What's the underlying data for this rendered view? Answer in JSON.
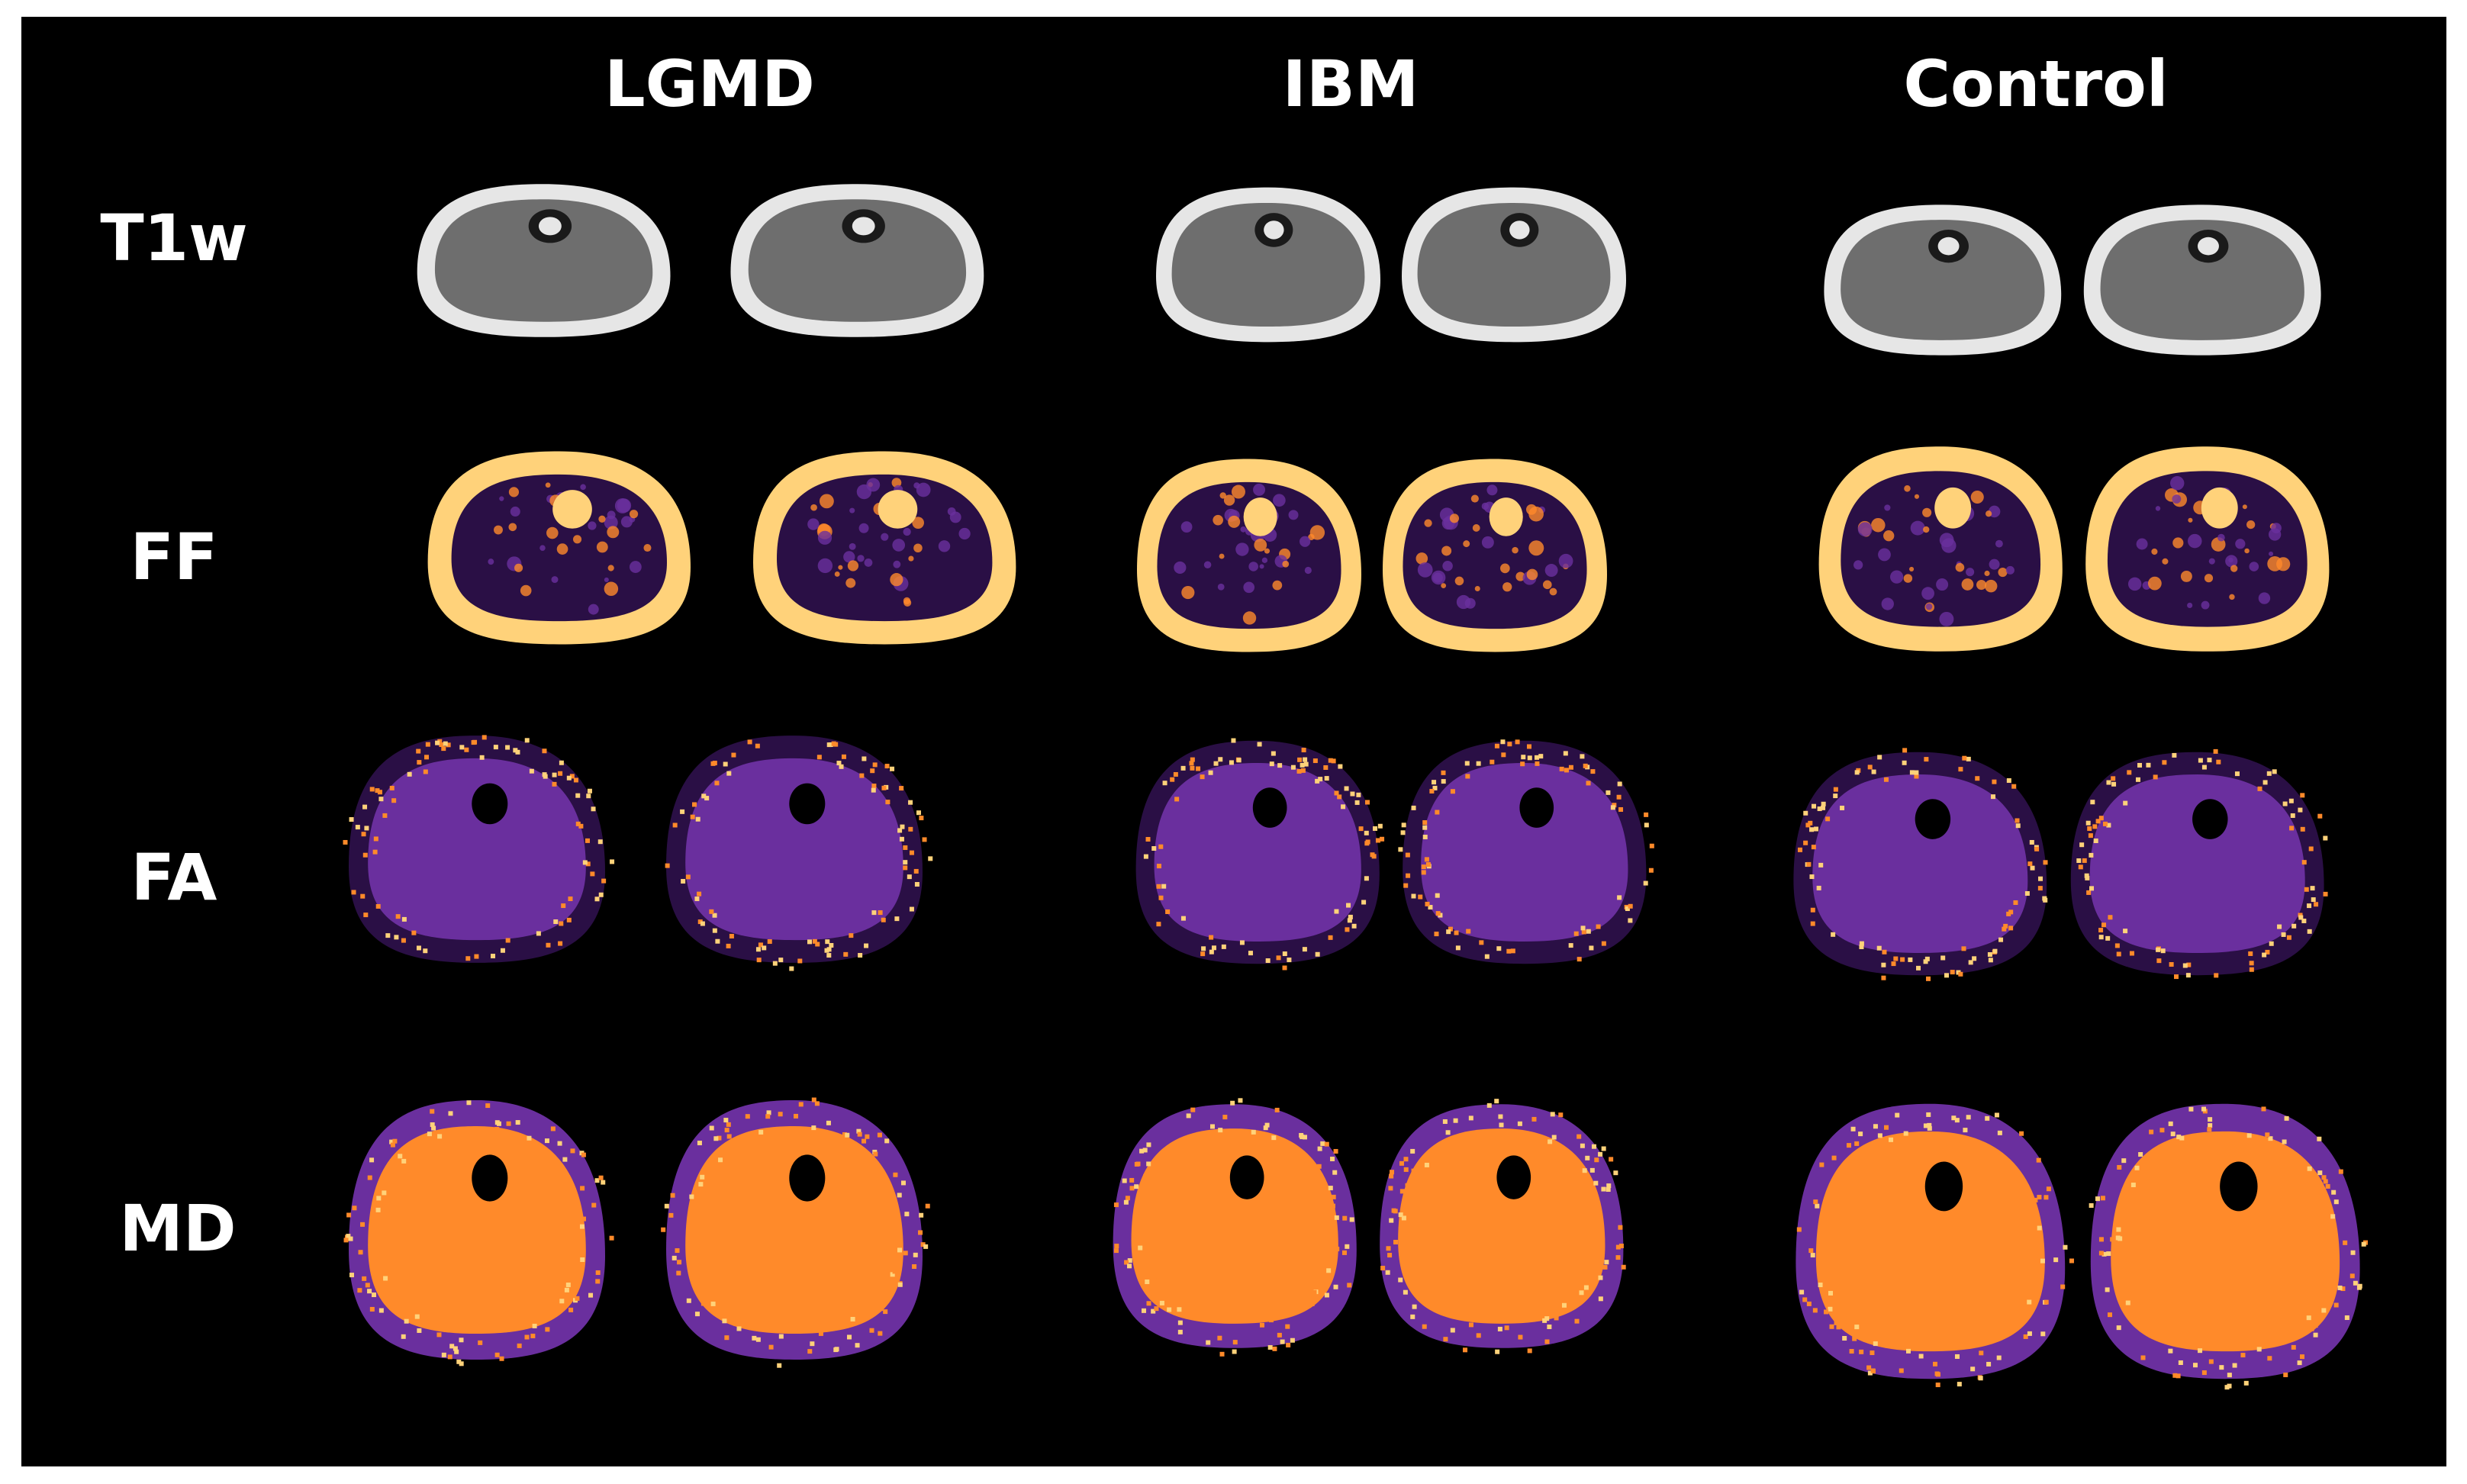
{
  "columns": [
    "LGMD",
    "IBM",
    "Control"
  ],
  "rows": [
    "T1w",
    "FF",
    "FA",
    "MD"
  ],
  "colors": {
    "background": "#000000",
    "label": "#ffffff",
    "t1_bright": "#e6e6e6",
    "t1_mid": "#6e6e6e",
    "t1_dark": "#1a1a1a",
    "map_high": "#ffd27a",
    "map_mid": "#ff8a2a",
    "map_low": "#6a2f9e",
    "map_dark": "#2a0f45"
  }
}
